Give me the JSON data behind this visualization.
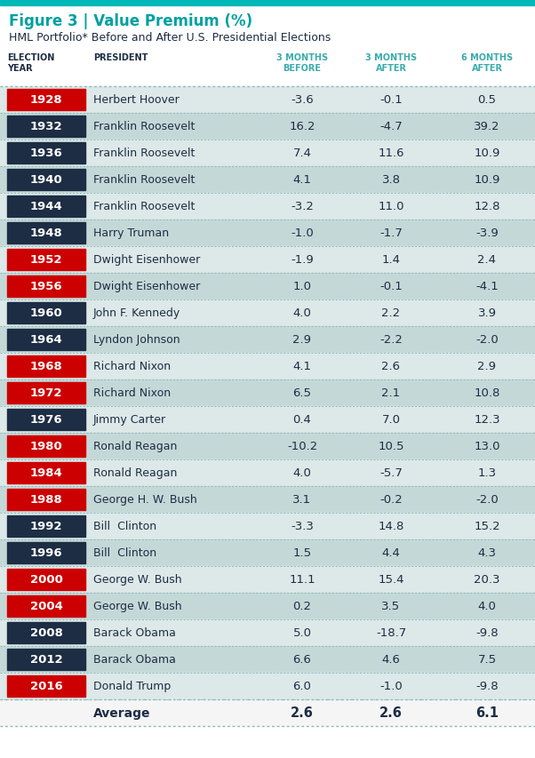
{
  "title_fig": "Figure 3 | Value Premium (%)",
  "title_sub": "HML Portfolio* Before and After U.S. Presidential Elections",
  "rows": [
    {
      "year": "1928",
      "president": "Herbert Hoover",
      "b3": -3.6,
      "a3": -0.1,
      "a6": 0.5,
      "red": true
    },
    {
      "year": "1932",
      "president": "Franklin Roosevelt",
      "b3": 16.2,
      "a3": -4.7,
      "a6": 39.2,
      "red": false
    },
    {
      "year": "1936",
      "president": "Franklin Roosevelt",
      "b3": 7.4,
      "a3": 11.6,
      "a6": 10.9,
      "red": false
    },
    {
      "year": "1940",
      "president": "Franklin Roosevelt",
      "b3": 4.1,
      "a3": 3.8,
      "a6": 10.9,
      "red": false
    },
    {
      "year": "1944",
      "president": "Franklin Roosevelt",
      "b3": -3.2,
      "a3": 11.0,
      "a6": 12.8,
      "red": false
    },
    {
      "year": "1948",
      "president": "Harry Truman",
      "b3": -1.0,
      "a3": -1.7,
      "a6": -3.9,
      "red": false
    },
    {
      "year": "1952",
      "president": "Dwight Eisenhower",
      "b3": -1.9,
      "a3": 1.4,
      "a6": 2.4,
      "red": true
    },
    {
      "year": "1956",
      "president": "Dwight Eisenhower",
      "b3": 1.0,
      "a3": -0.1,
      "a6": -4.1,
      "red": true
    },
    {
      "year": "1960",
      "president": "John F. Kennedy",
      "b3": 4.0,
      "a3": 2.2,
      "a6": 3.9,
      "red": false
    },
    {
      "year": "1964",
      "president": "Lyndon Johnson",
      "b3": 2.9,
      "a3": -2.2,
      "a6": -2.0,
      "red": false
    },
    {
      "year": "1968",
      "president": "Richard Nixon",
      "b3": 4.1,
      "a3": 2.6,
      "a6": 2.9,
      "red": true
    },
    {
      "year": "1972",
      "president": "Richard Nixon",
      "b3": 6.5,
      "a3": 2.1,
      "a6": 10.8,
      "red": true
    },
    {
      "year": "1976",
      "president": "Jimmy Carter",
      "b3": 0.4,
      "a3": 7.0,
      "a6": 12.3,
      "red": false
    },
    {
      "year": "1980",
      "president": "Ronald Reagan",
      "b3": -10.2,
      "a3": 10.5,
      "a6": 13.0,
      "red": true
    },
    {
      "year": "1984",
      "president": "Ronald Reagan",
      "b3": 4.0,
      "a3": -5.7,
      "a6": 1.3,
      "red": true
    },
    {
      "year": "1988",
      "president": "George H. W. Bush",
      "b3": 3.1,
      "a3": -0.2,
      "a6": -2.0,
      "red": true
    },
    {
      "year": "1992",
      "president": "Bill  Clinton",
      "b3": -3.3,
      "a3": 14.8,
      "a6": 15.2,
      "red": false
    },
    {
      "year": "1996",
      "president": "Bill  Clinton",
      "b3": 1.5,
      "a3": 4.4,
      "a6": 4.3,
      "red": false
    },
    {
      "year": "2000",
      "president": "George W. Bush",
      "b3": 11.1,
      "a3": 15.4,
      "a6": 20.3,
      "red": true
    },
    {
      "year": "2004",
      "president": "George W. Bush",
      "b3": 0.2,
      "a3": 3.5,
      "a6": 4.0,
      "red": true
    },
    {
      "year": "2008",
      "president": "Barack Obama",
      "b3": 5.0,
      "a3": -18.7,
      "a6": -9.8,
      "red": false
    },
    {
      "year": "2012",
      "president": "Barack Obama",
      "b3": 6.6,
      "a3": 4.6,
      "a6": 7.5,
      "red": false
    },
    {
      "year": "2016",
      "president": "Donald Trump",
      "b3": 6.0,
      "a3": -1.0,
      "a6": -9.8,
      "red": true
    }
  ],
  "avg": {
    "b3": 2.6,
    "a3": 2.6,
    "a6": 6.1
  },
  "color_red": "#CC0000",
  "color_navy": "#1d2d44",
  "color_teal_title": "#00a0a0",
  "color_teal_header": "#3aacac",
  "color_row_odd": "#dde8e8",
  "color_row_even": "#c5d8d8",
  "color_divider": "#8abcbc",
  "color_text_dark": "#1d2d44",
  "color_avg_bg": "#f5f5f5",
  "top_bar_color": "#00b8b8",
  "bg_color": "#ffffff"
}
